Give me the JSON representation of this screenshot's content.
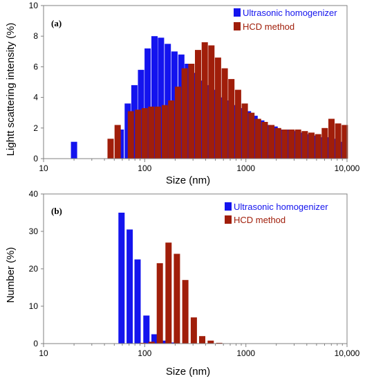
{
  "figure": {
    "panels": [
      {
        "label": "(a)",
        "ylabel": "Lightt scattering intensity (%)",
        "xlabel": "Size (nm)"
      },
      {
        "label": "(b)",
        "ylabel": "Number (%)",
        "xlabel": "Size (nm)"
      }
    ],
    "legend": {
      "series1": "Ultrasonic homogenizer",
      "series2": "HCD method"
    },
    "colors": {
      "series1": "#1414ee",
      "series2": "#a01e0a",
      "axis": "#808080"
    }
  },
  "chart_data": [
    {
      "type": "bar",
      "panel": "(a)",
      "xlabel": "Size (nm)",
      "ylabel": "Lightt scattering intensity (%)",
      "x_scale": "log",
      "xlim": [
        10,
        10000
      ],
      "ylim": [
        0,
        10
      ],
      "x_tick_labels": [
        "10",
        "100",
        "1000",
        "10,000"
      ],
      "y_tick_labels": [
        "0",
        "2",
        "4",
        "6",
        "8",
        "10"
      ],
      "legend_position": "top-right",
      "series": [
        {
          "name": "Ultrasonic homogenizer",
          "color": "#1414ee",
          "x": [
            20,
            58,
            68,
            79,
            92,
            107,
            125,
            145,
            169,
            197,
            230,
            267,
            311,
            362,
            422,
            491,
            571,
            665,
            774,
            901,
            1049,
            1220,
            1420,
            1653,
            1925,
            2240,
            2607,
            3034,
            3532,
            4111,
            4785,
            5569,
            6482,
            7544,
            8781
          ],
          "values": [
            1.1,
            1.9,
            3.6,
            4.8,
            5.8,
            7.2,
            8.0,
            7.9,
            7.5,
            7.0,
            6.8,
            6.2,
            5.6,
            5.1,
            4.8,
            4.5,
            4.0,
            3.8,
            3.5,
            3.3,
            3.1,
            2.8,
            2.5,
            2.2,
            2.1,
            1.9,
            1.9,
            1.8,
            1.7,
            1.6,
            1.5,
            1.4,
            1.4,
            1.3,
            1.1
          ]
        },
        {
          "name": "HCD method",
          "color": "#a01e0a",
          "x": [
            46,
            54,
            73,
            86,
            100,
            116,
            135,
            158,
            183,
            213,
            248,
            289,
            337,
            392,
            456,
            531,
            618,
            719,
            837,
            975,
            1134,
            1320,
            1537,
            1789,
            2082,
            2423,
            2821,
            3283,
            3821,
            4448,
            5177,
            6026,
            7014,
            8163,
            9502
          ],
          "values": [
            1.3,
            2.2,
            3.1,
            3.2,
            3.3,
            3.4,
            3.4,
            3.5,
            3.8,
            4.7,
            5.9,
            6.2,
            7.1,
            7.6,
            7.4,
            6.6,
            5.9,
            5.2,
            4.5,
            3.6,
            3.0,
            2.6,
            2.4,
            2.2,
            2.0,
            1.9,
            1.9,
            1.9,
            1.8,
            1.7,
            1.6,
            2.0,
            2.6,
            2.3,
            2.2
          ]
        }
      ]
    },
    {
      "type": "bar",
      "panel": "(b)",
      "xlabel": "Size (nm)",
      "ylabel": "Number (%)",
      "x_scale": "log",
      "xlim": [
        10,
        10000
      ],
      "ylim": [
        0,
        40
      ],
      "x_tick_labels": [
        "10",
        "100",
        "1000",
        "10,000"
      ],
      "y_tick_labels": [
        "0",
        "10",
        "20",
        "30",
        "40"
      ],
      "legend_position": "top-right",
      "series": [
        {
          "name": "Ultrasonic homogenizer",
          "color": "#1414ee",
          "x": [
            59,
            71,
            85,
            104,
            125,
            151,
            183,
            222
          ],
          "values": [
            35,
            30.5,
            22.5,
            7.5,
            2.5,
            0.8,
            0.3,
            0.1
          ]
        },
        {
          "name": "HCD method",
          "color": "#a01e0a",
          "x": [
            65,
            79,
            96,
            117,
            141,
            172,
            208,
            252,
            306,
            370,
            449,
            545
          ],
          "values": [
            0.1,
            0.1,
            0.2,
            0.5,
            21.5,
            27,
            24,
            17,
            7,
            2,
            0.8,
            0.2
          ]
        }
      ]
    }
  ]
}
